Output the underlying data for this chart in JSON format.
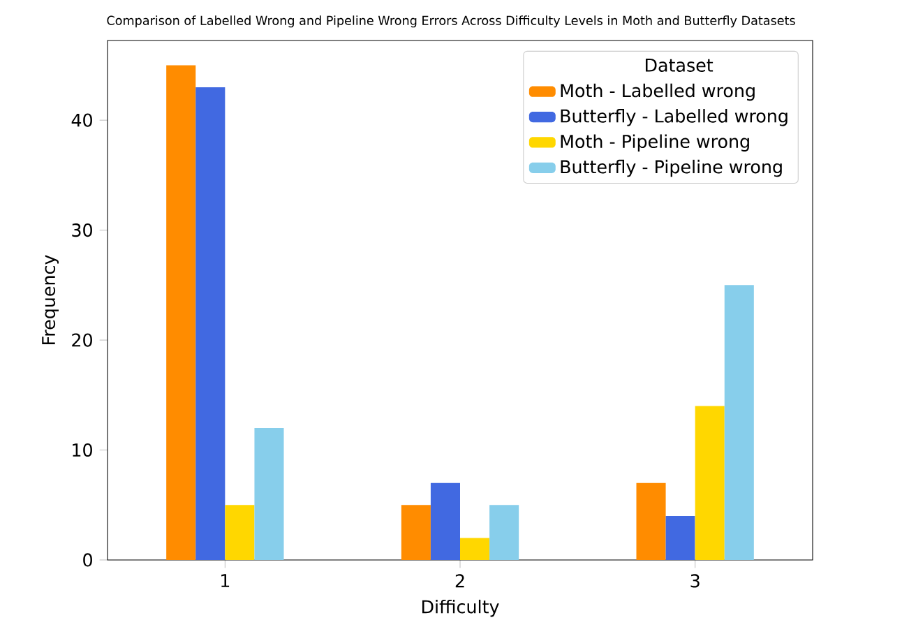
{
  "chart_data": {
    "type": "bar",
    "title": "Comparison of Labelled Wrong and Pipeline Wrong Errors Across Difficulty Levels in Moth and Butterfly Datasets",
    "xlabel": "Difficulty",
    "ylabel": "Frequency",
    "legend_title": "Dataset",
    "legend": "top right",
    "categories": [
      "1",
      "2",
      "3"
    ],
    "series": [
      {
        "name": "Moth - Labelled wrong",
        "color": "#ff8c00",
        "values": [
          45,
          5,
          7
        ]
      },
      {
        "name": "Butterfly - Labelled wrong",
        "color": "#4169e1",
        "values": [
          43,
          7,
          4
        ]
      },
      {
        "name": "Moth - Pipeline wrong",
        "color": "#ffd700",
        "values": [
          5,
          2,
          14
        ]
      },
      {
        "name": "Butterfly - Pipeline wrong",
        "color": "#87ceeb",
        "values": [
          12,
          5,
          25
        ]
      }
    ],
    "ylim": [
      0,
      47.25
    ],
    "yticks": [
      0,
      10,
      20,
      30,
      40
    ]
  }
}
